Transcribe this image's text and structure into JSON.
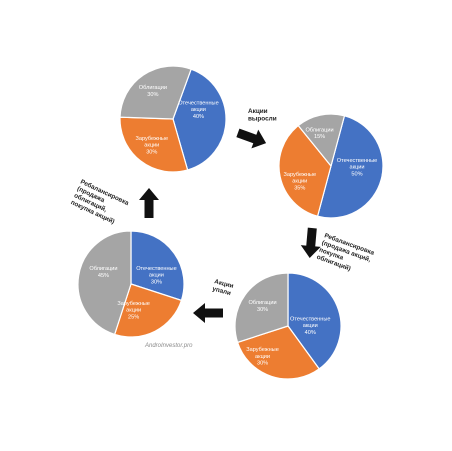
{
  "colors": {
    "domestic": "#4472C4",
    "foreign": "#ED7D31",
    "bonds": "#A5A5A5",
    "arrow": "#111111",
    "label_text": "#ffffff"
  },
  "charts": [
    {
      "slices": [
        {
          "key": "domestic",
          "lines": [
            "Отечественные",
            "акции",
            "40%"
          ],
          "percent": 40
        },
        {
          "key": "foreign",
          "lines": [
            "Зарубежные",
            "акции",
            "30%"
          ],
          "percent": 30
        },
        {
          "key": "bonds",
          "lines": [
            "Облигации",
            "30%"
          ],
          "percent": 30
        }
      ]
    },
    {
      "slices": [
        {
          "key": "domestic",
          "lines": [
            "Отечественные",
            "акции",
            "50%"
          ],
          "percent": 50
        },
        {
          "key": "foreign",
          "lines": [
            "Зарубежные",
            "акции",
            "35%"
          ],
          "percent": 35
        },
        {
          "key": "bonds",
          "lines": [
            "Облигации",
            "15%"
          ],
          "percent": 15
        }
      ]
    },
    {
      "slices": [
        {
          "key": "domestic",
          "lines": [
            "Отечественные",
            "акции",
            "40%"
          ],
          "percent": 40
        },
        {
          "key": "foreign",
          "lines": [
            "Зарубежные",
            "акции",
            "30%"
          ],
          "percent": 30
        },
        {
          "key": "bonds",
          "lines": [
            "Облигации",
            "30%"
          ],
          "percent": 30
        }
      ]
    },
    {
      "slices": [
        {
          "key": "domestic",
          "lines": [
            "Отечественные",
            "акции",
            "30%"
          ],
          "percent": 30
        },
        {
          "key": "foreign",
          "lines": [
            "Зарубежные",
            "акции",
            "25%"
          ],
          "percent": 25
        },
        {
          "key": "bonds",
          "lines": [
            "Облигации",
            "45%"
          ],
          "percent": 45
        }
      ]
    }
  ],
  "steps": [
    {
      "lines": [
        "Акции",
        "выросли"
      ],
      "arrow": "right"
    },
    {
      "lines": [
        "Ребалансировка",
        "(продажа акций,",
        "покупка",
        "облигаций)"
      ],
      "arrow": "down"
    },
    {
      "lines": [
        "Акции",
        "упали"
      ],
      "arrow": "left"
    },
    {
      "lines": [
        "Ребалансировка",
        "(продажа",
        "облигаций,",
        "покупка акций)"
      ],
      "arrow": "up"
    }
  ],
  "watermark": "AndroInvestor.pro"
}
